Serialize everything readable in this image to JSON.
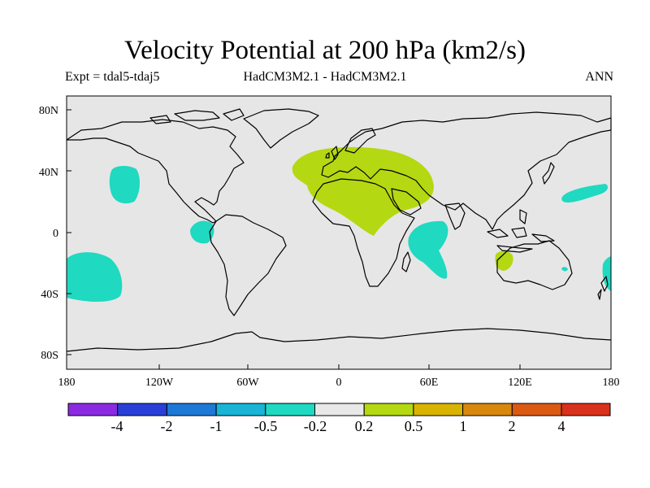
{
  "title": "Velocity Potential at 200 hPa (km2/s)",
  "subtitle_left": "Expt = tdal5-tdaj5",
  "subtitle_center": "HadCM3M2.1 - HadCM3M2.1",
  "subtitle_right": "ANN",
  "latitude_labels": [
    "80N",
    "40N",
    "0",
    "40S",
    "80S"
  ],
  "longitude_labels": [
    "180",
    "120W",
    "60W",
    "0",
    "60E",
    "120E",
    "180"
  ],
  "colorbar": {
    "colors": [
      "#8a2be2",
      "#2a3fd8",
      "#1e78d6",
      "#19b4d6",
      "#1fd9c1",
      "#e8e8e8",
      "#b4d812",
      "#d8b400",
      "#d8880c",
      "#da5a14",
      "#d8321c",
      "#d80000"
    ],
    "labels": [
      "-4",
      "-2",
      "-1",
      "-0.5",
      "-0.2",
      "0.2",
      "0.5",
      "1",
      "2",
      "4"
    ]
  },
  "map": {
    "background": "#e6e6e6",
    "anomaly_regions": [
      {
        "name": "North Africa / Europe positive",
        "level": "0.2 to 0.5",
        "color": "#b4d812"
      },
      {
        "name": "Australia positive",
        "level": "0.2 to 0.5",
        "color": "#b4d812"
      },
      {
        "name": "North Pacific negative",
        "level": "-0.5 to -0.2",
        "color": "#1fd9c1"
      },
      {
        "name": "South Pacific negative",
        "level": "-0.5 to -0.2",
        "color": "#1fd9c1"
      },
      {
        "name": "Equatorial Pacific negative",
        "level": "-0.5 to -0.2",
        "color": "#1fd9c1"
      },
      {
        "name": "Western Indian Ocean negative",
        "level": "-0.5 to -0.2",
        "color": "#1fd9c1"
      },
      {
        "name": "West Pacific negative",
        "level": "-0.5 to -0.2",
        "color": "#1fd9c1"
      },
      {
        "name": "Southwest Pacific negative",
        "level": "-0.5 to -0.2",
        "color": "#1fd9c1"
      }
    ]
  }
}
